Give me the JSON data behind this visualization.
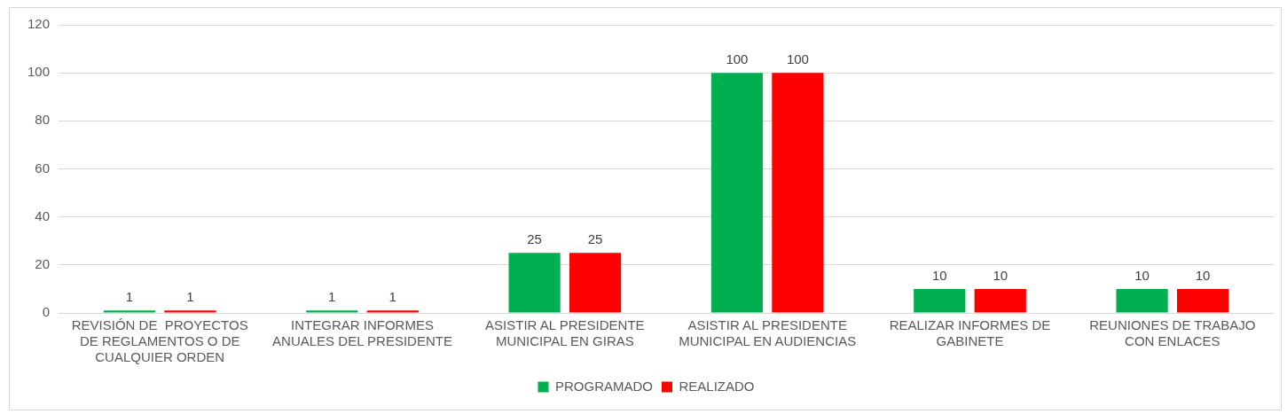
{
  "chart_data": {
    "type": "bar",
    "categories": [
      "REVISIÓN DE  PROYECTOS DE REGLAMENTOS O DE CUALQUIER ORDEN",
      "INTEGRAR INFORMES ANUALES DEL PRESIDENTE",
      "ASISTIR AL PRESIDENTE MUNICIPAL EN GIRAS",
      "ASISTIR AL PRESIDENTE MUNICIPAL EN AUDIENCIAS",
      "REALIZAR INFORMES DE GABINETE",
      "REUNIONES DE TRABAJO CON ENLACES"
    ],
    "series": [
      {
        "name": "PROGRAMADO",
        "color": "#00b050",
        "values": [
          1,
          1,
          25,
          100,
          10,
          10
        ]
      },
      {
        "name": "REALIZADO",
        "color": "#ff0000",
        "values": [
          1,
          1,
          25,
          100,
          10,
          10
        ]
      }
    ],
    "ylim": [
      0,
      120
    ],
    "yticks": [
      0,
      20,
      40,
      60,
      80,
      100,
      120
    ],
    "grid": "y",
    "legend": "bottom",
    "data_labels": true
  }
}
